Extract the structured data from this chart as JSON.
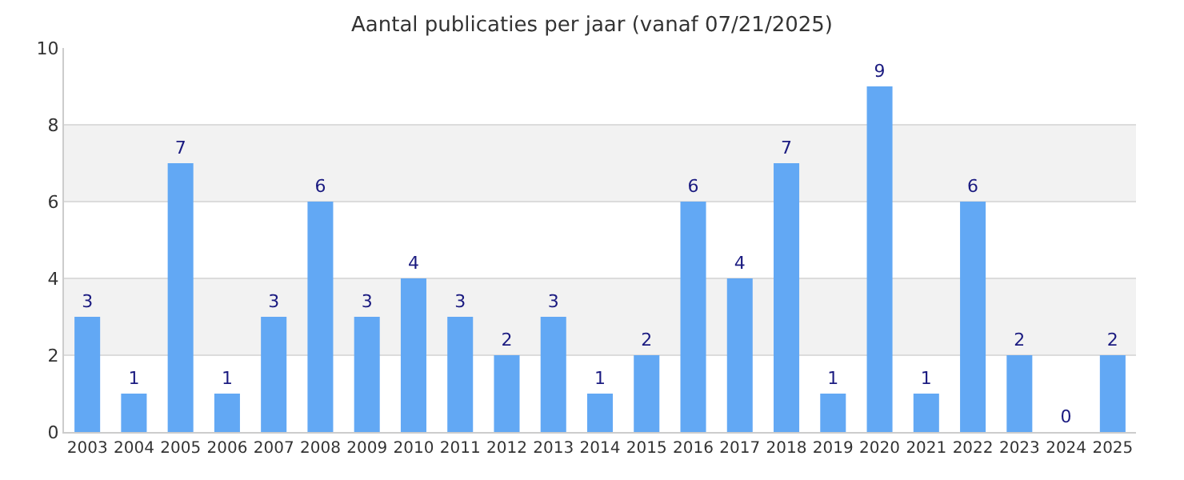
{
  "chart_data": {
    "type": "bar",
    "title": "Aantal publicaties per jaar (vanaf 07/21/2025)",
    "categories": [
      "2003",
      "2004",
      "2005",
      "2006",
      "2007",
      "2008",
      "2009",
      "2010",
      "2011",
      "2012",
      "2013",
      "2014",
      "2015",
      "2016",
      "2017",
      "2018",
      "2019",
      "2020",
      "2021",
      "2022",
      "2023",
      "2024",
      "2025"
    ],
    "values": [
      3,
      1,
      7,
      1,
      3,
      6,
      3,
      4,
      3,
      2,
      3,
      1,
      2,
      6,
      4,
      7,
      1,
      9,
      1,
      6,
      2,
      0,
      2
    ],
    "color": "#62a8f4",
    "ylim": [
      0,
      10
    ],
    "yticks": [
      0,
      2,
      4,
      6,
      8,
      10
    ],
    "grid": "y",
    "data_labels": true,
    "bands": [
      {
        "axis": "y",
        "from": 2,
        "to": 4,
        "color": "#f2f2f2"
      },
      {
        "axis": "y",
        "from": 6,
        "to": 8,
        "color": "#f2f2f2"
      }
    ]
  }
}
